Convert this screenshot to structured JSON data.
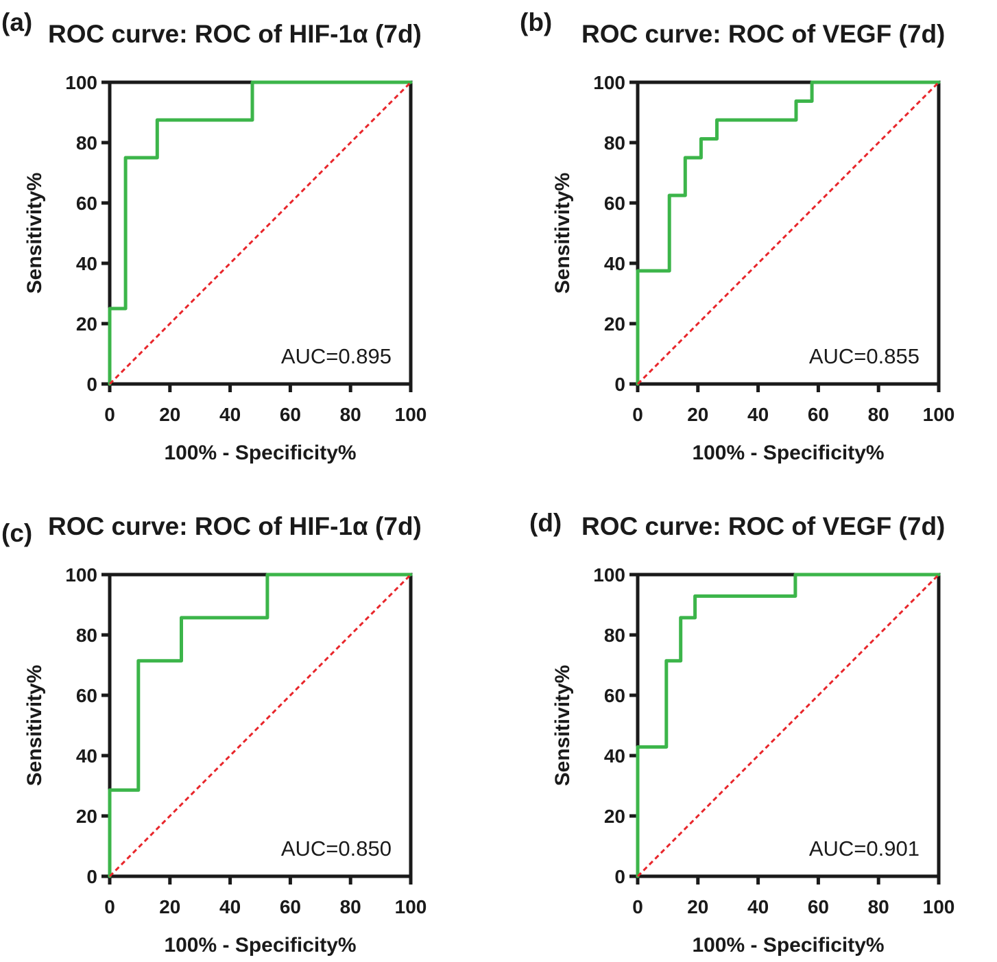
{
  "colors": {
    "curve": "#3cb54a",
    "reference": "#e8262b",
    "axis": "#1a1a1a"
  },
  "chart_data": [
    {
      "type": "line",
      "panel_label": "(a)",
      "title": "ROC curve: ROC of HIF-1α (7d)",
      "xlabel": "100% - Specificity%",
      "ylabel": "Sensitivity%",
      "xlim": [
        0,
        100
      ],
      "ylim": [
        0,
        100
      ],
      "xticks": [
        "0",
        "20",
        "40",
        "60",
        "80",
        "100"
      ],
      "yticks": [
        "0",
        "20",
        "40",
        "60",
        "80",
        "100"
      ],
      "annotation": "AUC=0.895",
      "series": [
        {
          "name": "ROC",
          "step": true,
          "x": [
            0,
            0,
            5.26,
            5.26,
            15.79,
            15.79,
            47.37,
            47.37,
            100
          ],
          "y": [
            0,
            25,
            25,
            75,
            75,
            87.5,
            87.5,
            100,
            100
          ]
        },
        {
          "name": "Reference line",
          "dashed": true,
          "x": [
            0,
            100
          ],
          "y": [
            0,
            100
          ]
        }
      ]
    },
    {
      "type": "line",
      "panel_label": "(b)",
      "title": "ROC curve: ROC of VEGF (7d)",
      "xlabel": "100% - Specificity%",
      "ylabel": "Sensitivity%",
      "xlim": [
        0,
        100
      ],
      "ylim": [
        0,
        100
      ],
      "xticks": [
        "0",
        "20",
        "40",
        "60",
        "80",
        "100"
      ],
      "yticks": [
        "0",
        "20",
        "40",
        "60",
        "80",
        "100"
      ],
      "annotation": "AUC=0.855",
      "series": [
        {
          "name": "ROC",
          "step": true,
          "x": [
            0,
            0,
            10.53,
            10.53,
            15.79,
            15.79,
            21.05,
            21.05,
            26.32,
            26.32,
            52.63,
            52.63,
            57.89,
            57.89,
            100
          ],
          "y": [
            0,
            37.5,
            37.5,
            62.5,
            62.5,
            75,
            75,
            81.25,
            81.25,
            87.5,
            87.5,
            93.75,
            93.75,
            100,
            100
          ]
        },
        {
          "name": "Reference line",
          "dashed": true,
          "x": [
            0,
            100
          ],
          "y": [
            0,
            100
          ]
        }
      ]
    },
    {
      "type": "line",
      "panel_label": "(c)",
      "title": "ROC curve: ROC of HIF-1α (7d)",
      "xlabel": "100% - Specificity%",
      "ylabel": "Sensitivity%",
      "xlim": [
        0,
        100
      ],
      "ylim": [
        0,
        100
      ],
      "xticks": [
        "0",
        "20",
        "40",
        "60",
        "80",
        "100"
      ],
      "yticks": [
        "0",
        "20",
        "40",
        "60",
        "80",
        "100"
      ],
      "annotation": "AUC=0.850",
      "series": [
        {
          "name": "ROC",
          "step": true,
          "x": [
            0,
            0,
            9.52,
            9.52,
            23.81,
            23.81,
            52.38,
            52.38,
            100
          ],
          "y": [
            0,
            28.57,
            28.57,
            71.43,
            71.43,
            85.71,
            85.71,
            100,
            100
          ]
        },
        {
          "name": "Reference line",
          "dashed": true,
          "x": [
            0,
            100
          ],
          "y": [
            0,
            100
          ]
        }
      ]
    },
    {
      "type": "line",
      "panel_label": "(d)",
      "title": "ROC curve: ROC of VEGF (7d)",
      "xlabel": "100% - Specificity%",
      "ylabel": "Sensitivity%",
      "xlim": [
        0,
        100
      ],
      "ylim": [
        0,
        100
      ],
      "xticks": [
        "0",
        "20",
        "40",
        "60",
        "80",
        "100"
      ],
      "yticks": [
        "0",
        "20",
        "40",
        "60",
        "80",
        "100"
      ],
      "annotation": "AUC=0.901",
      "series": [
        {
          "name": "ROC",
          "step": true,
          "x": [
            0,
            0,
            9.52,
            9.52,
            14.29,
            14.29,
            19.05,
            19.05,
            52.38,
            52.38,
            100
          ],
          "y": [
            0,
            42.86,
            42.86,
            71.43,
            71.43,
            85.71,
            85.71,
            92.86,
            92.86,
            100,
            100
          ]
        },
        {
          "name": "Reference line",
          "dashed": true,
          "x": [
            0,
            100
          ],
          "y": [
            0,
            100
          ]
        }
      ]
    }
  ]
}
